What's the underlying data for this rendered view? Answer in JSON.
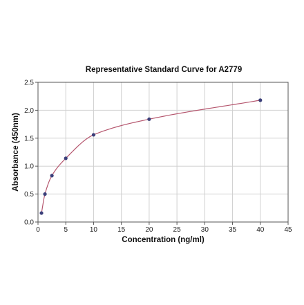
{
  "chart_data": {
    "type": "scatter",
    "title": "Representative Standard Curve for A2779",
    "xlabel": "Concentration (ng/ml)",
    "ylabel": "Absorbance (450nm)",
    "xlim": [
      0,
      45
    ],
    "ylim": [
      0,
      2.5
    ],
    "x_ticks": [
      0,
      5,
      10,
      15,
      20,
      25,
      30,
      35,
      40,
      45
    ],
    "y_ticks": [
      0.0,
      0.5,
      1.0,
      1.5,
      2.0,
      2.5
    ],
    "x_tick_labels": [
      "0",
      "5",
      "10",
      "15",
      "20",
      "25",
      "30",
      "35",
      "40",
      "45"
    ],
    "y_tick_labels": [
      "0.0",
      "0.5",
      "1.0",
      "1.5",
      "2.0",
      "2.5"
    ],
    "grid": true,
    "series": [
      {
        "x": [
          0.625,
          1.25,
          2.5,
          5,
          10,
          20,
          40
        ],
        "y": [
          0.16,
          0.5,
          0.83,
          1.14,
          1.56,
          1.84,
          2.18
        ],
        "color": "#3b3f7a"
      }
    ],
    "fit_curve": {
      "color": "#b5566e"
    }
  }
}
